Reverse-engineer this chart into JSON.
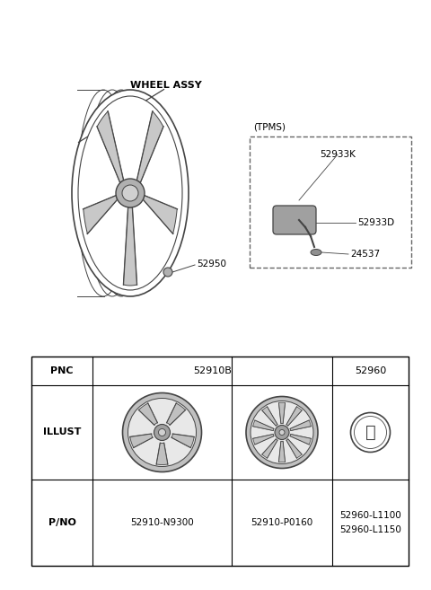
{
  "bg_color": "#ffffff",
  "wheel_label": "WHEEL ASSY",
  "wheel_part": "52950",
  "tpms_label": "(TPMS)",
  "tpms_parts": [
    "52933K",
    "52933D",
    "24537"
  ],
  "pnc_row": [
    "PNC",
    "52910B",
    "52960"
  ],
  "illust_row": "ILLUST",
  "pno_label": "P/NO",
  "pno_col1": "52910-N9300",
  "pno_col2": "52910-P0160",
  "pno_col3a": "52960-L1100",
  "pno_col3b": "52960-L1150",
  "border_color": "#000000",
  "text_color": "#000000",
  "dark_gray": "#444444",
  "med_gray": "#888888",
  "light_gray": "#cccccc",
  "dashed_color": "#666666"
}
